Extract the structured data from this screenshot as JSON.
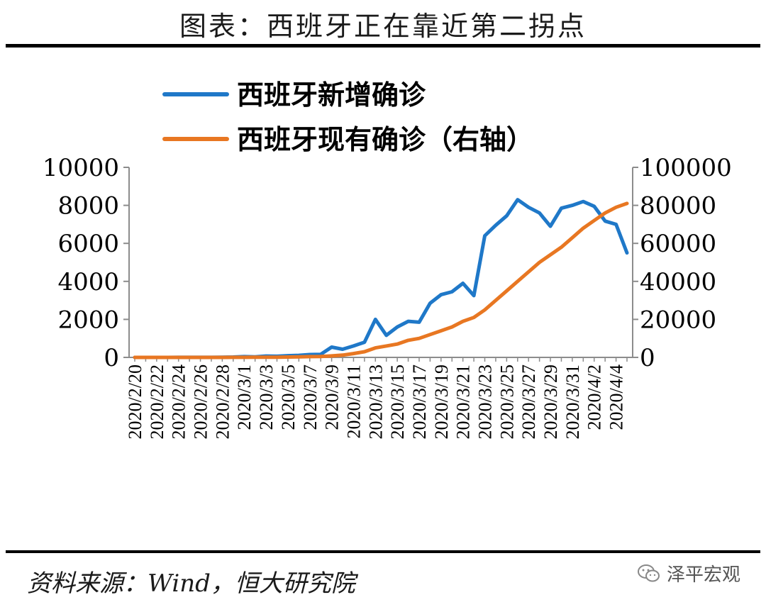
{
  "header": {
    "title": "图表：西班牙正在靠近第二拐点"
  },
  "footer": {
    "source": "资料来源：Wind，恒大研究院",
    "watermark": "泽平宏观"
  },
  "colors": {
    "series_new": "#1f78c8",
    "series_active": "#e87722",
    "axis": "#8c8c8c"
  },
  "chart_data": {
    "type": "line",
    "title": "图表：西班牙正在靠近第二拐点",
    "x": [
      "2020/2/20",
      "2020/2/21",
      "2020/2/22",
      "2020/2/23",
      "2020/2/24",
      "2020/2/25",
      "2020/2/26",
      "2020/2/27",
      "2020/2/28",
      "2020/2/29",
      "2020/3/1",
      "2020/3/2",
      "2020/3/3",
      "2020/3/4",
      "2020/3/5",
      "2020/3/6",
      "2020/3/7",
      "2020/3/8",
      "2020/3/9",
      "2020/3/10",
      "2020/3/11",
      "2020/3/12",
      "2020/3/13",
      "2020/3/14",
      "2020/3/15",
      "2020/3/16",
      "2020/3/17",
      "2020/3/18",
      "2020/3/19",
      "2020/3/20",
      "2020/3/21",
      "2020/3/22",
      "2020/3/23",
      "2020/3/24",
      "2020/3/25",
      "2020/3/26",
      "2020/3/27",
      "2020/3/28",
      "2020/3/29",
      "2020/3/30",
      "2020/3/31",
      "2020/4/1",
      "2020/4/2",
      "2020/4/3",
      "2020/4/4",
      "2020/4/5"
    ],
    "tick_labels": [
      "2020/2/20",
      "2020/2/22",
      "2020/2/24",
      "2020/2/26",
      "2020/2/28",
      "2020/3/1",
      "2020/3/3",
      "2020/3/5",
      "2020/3/7",
      "2020/3/9",
      "2020/3/11",
      "2020/3/13",
      "2020/3/15",
      "2020/3/17",
      "2020/3/19",
      "2020/3/21",
      "2020/3/23",
      "2020/3/25",
      "2020/3/27",
      "2020/3/29",
      "2020/3/31",
      "2020/4/2",
      "2020/4/4"
    ],
    "series": [
      {
        "name": "西班牙新增确诊",
        "axis": "left",
        "values": [
          0,
          0,
          0,
          1,
          2,
          5,
          3,
          2,
          10,
          20,
          40,
          30,
          70,
          60,
          90,
          110,
          150,
          160,
          540,
          430,
          600,
          800,
          2000,
          1160,
          1600,
          1900,
          1850,
          2850,
          3300,
          3450,
          3900,
          3250,
          6400,
          6950,
          7450,
          8300,
          7900,
          7600,
          6900,
          7850,
          8000,
          8200,
          7950,
          7170,
          7000,
          5500
        ]
      },
      {
        "name": "西班牙现有确诊（右轴）",
        "axis": "right",
        "values": [
          0,
          0,
          0,
          0,
          1,
          5,
          10,
          12,
          15,
          20,
          40,
          60,
          100,
          120,
          200,
          300,
          400,
          500,
          800,
          1200,
          2000,
          3000,
          5000,
          6000,
          7000,
          9000,
          10000,
          12000,
          14000,
          16000,
          19000,
          21000,
          25000,
          30000,
          35000,
          40000,
          45000,
          50000,
          54000,
          58000,
          63000,
          68000,
          72000,
          76000,
          79000,
          81000
        ]
      }
    ],
    "yaxis_left": {
      "min": 0,
      "max": 10000,
      "ticks": [
        "0",
        "2000",
        "4000",
        "6000",
        "8000",
        "10000"
      ]
    },
    "yaxis_right": {
      "min": 0,
      "max": 100000,
      "ticks": [
        "0",
        "20000",
        "40000",
        "60000",
        "80000",
        "100000"
      ]
    },
    "legend": {
      "placement": "top-left",
      "entries": [
        "西班牙新增确诊",
        "西班牙现有确诊（右轴）"
      ]
    },
    "grid": false
  }
}
